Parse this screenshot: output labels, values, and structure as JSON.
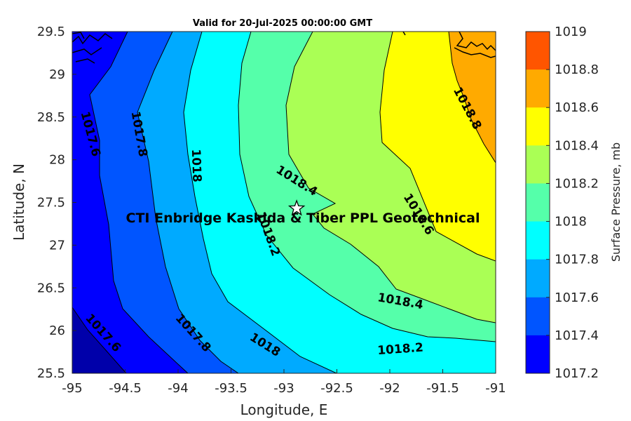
{
  "title": "Valid for 20-Jul-2025 00:00:00 GMT",
  "axes": {
    "xlabel": "Longitude, E",
    "ylabel": "Latitude, N",
    "xlim": [
      -95,
      -91
    ],
    "ylim": [
      25.5,
      29.5
    ],
    "xticks": [
      "-95",
      "-94.5",
      "-94",
      "-93.5",
      "-93",
      "-92.5",
      "-92",
      "-91.5",
      "-91"
    ],
    "yticks": [
      "29.5",
      "29",
      "28.5",
      "28",
      "27.5",
      "27",
      "26.5",
      "26",
      "25.5"
    ]
  },
  "site": {
    "label": "CTI Enbridge  Kaskida & Tiber PPL Geotechnical",
    "marker_icon": "star-icon",
    "lon": -92.88,
    "lat": 27.43
  },
  "colorbar": {
    "title": "Surface Pressure, mb",
    "levels": [
      {
        "label": "1019",
        "color": "#ff5500"
      },
      {
        "label": "1018.8",
        "color": "#ffaa00"
      },
      {
        "label": "1018.6",
        "color": "#ffff00"
      },
      {
        "label": "1018.4",
        "color": "#aaff55"
      },
      {
        "label": "1018.2",
        "color": "#55ffaa"
      },
      {
        "label": "1018",
        "color": "#00ffff"
      },
      {
        "label": "1017.8",
        "color": "#00aaff"
      },
      {
        "label": "1017.6",
        "color": "#0055ff"
      },
      {
        "label": "1017.4",
        "color": "#0000ff"
      },
      {
        "label": "1017.2",
        "color": "#0000aa"
      }
    ]
  },
  "contour_labels": [
    {
      "text": "1017.6",
      "lon": -94.83,
      "lat": 28.3,
      "angle": 75
    },
    {
      "text": "1017.8",
      "lon": -94.37,
      "lat": 28.3,
      "angle": 80
    },
    {
      "text": "1018",
      "lon": -93.83,
      "lat": 27.93,
      "angle": 88
    },
    {
      "text": "1018.4",
      "lon": -92.88,
      "lat": 27.75,
      "angle": 32
    },
    {
      "text": "1018.2",
      "lon": -93.15,
      "lat": 27.13,
      "angle": 70
    },
    {
      "text": "1018.6",
      "lon": -91.73,
      "lat": 27.36,
      "angle": 58
    },
    {
      "text": "1018.8",
      "lon": -91.27,
      "lat": 28.6,
      "angle": 62
    },
    {
      "text": "1017.6",
      "lon": -94.71,
      "lat": 25.97,
      "angle": 48
    },
    {
      "text": "1017.8",
      "lon": -93.86,
      "lat": 25.97,
      "angle": 48
    },
    {
      "text": "1018",
      "lon": -93.18,
      "lat": 25.83,
      "angle": 32
    },
    {
      "text": "1018.4",
      "lon": -91.9,
      "lat": 26.34,
      "angle": 10
    },
    {
      "text": "1018.2",
      "lon": -91.9,
      "lat": 25.78,
      "angle": -4
    }
  ]
}
